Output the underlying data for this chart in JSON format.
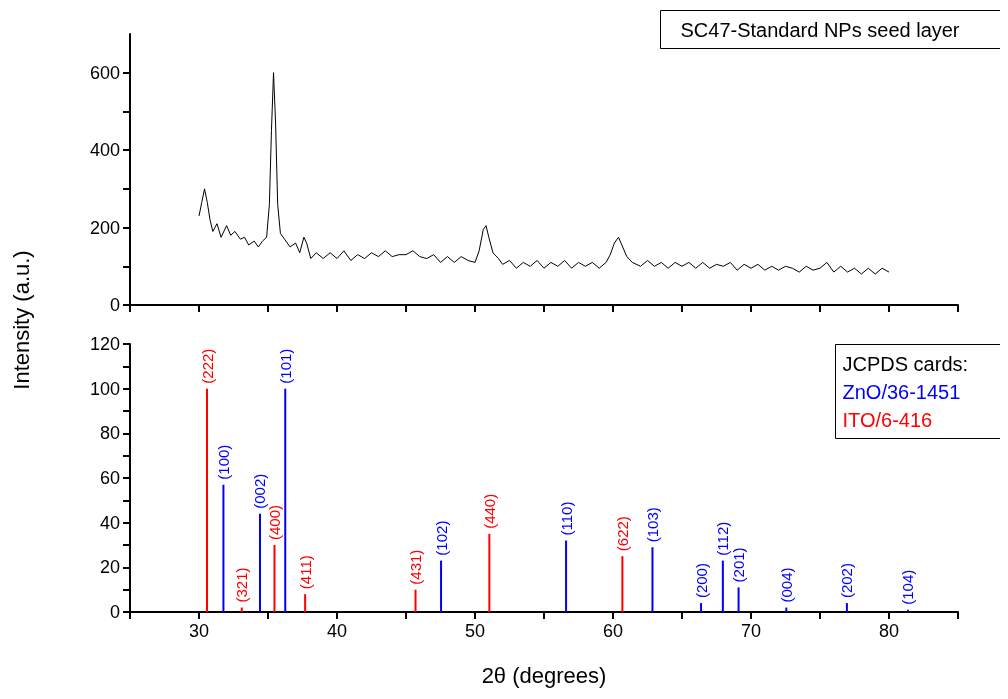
{
  "chart_data": [
    {
      "type": "line",
      "ylabel": "Intensity (a.u.)",
      "legend": "top right",
      "marker": "none",
      "grid": false,
      "tick_labels": "y",
      "xlim": [
        25,
        85
      ],
      "ylim": [
        0,
        700
      ],
      "xticks": [
        {
          "value": 25,
          "label": null
        },
        30,
        {
          "value": 35,
          "label": null
        },
        40,
        {
          "value": 45,
          "label": null
        },
        50,
        {
          "value": 55,
          "label": null
        },
        60,
        {
          "value": 65,
          "label": null
        },
        70,
        {
          "value": 75,
          "label": null
        },
        80,
        {
          "value": 85,
          "label": null
        }
      ],
      "yticks": [
        0,
        {
          "value": 100,
          "label": null
        },
        200,
        {
          "value": 300,
          "label": null
        },
        400,
        {
          "value": 500,
          "label": null
        },
        600
      ],
      "series": [
        {
          "name": "SC47-Standard NPs seed layer",
          "color": "#000000",
          "x": [
            30.0,
            30.2,
            30.4,
            30.6,
            30.8,
            31.0,
            31.3,
            31.6,
            32.0,
            32.3,
            32.6,
            33.0,
            33.3,
            33.6,
            34.0,
            34.3,
            34.6,
            34.9,
            35.1,
            35.25,
            35.4,
            35.55,
            35.7,
            35.9,
            36.2,
            36.6,
            37.0,
            37.3,
            37.6,
            37.8,
            38.1,
            38.5,
            39.0,
            39.5,
            40.0,
            40.5,
            41.0,
            41.5,
            42.0,
            42.5,
            43.0,
            43.5,
            44.0,
            44.5,
            45.0,
            45.5,
            46.0,
            46.5,
            47.0,
            47.5,
            48.0,
            48.5,
            49.0,
            49.5,
            50.0,
            50.3,
            50.6,
            50.8,
            51.0,
            51.3,
            51.7,
            52.0,
            52.5,
            53.0,
            53.5,
            54.0,
            54.5,
            55.0,
            55.5,
            56.0,
            56.5,
            57.0,
            57.5,
            58.0,
            58.5,
            59.0,
            59.5,
            59.8,
            60.1,
            60.4,
            60.7,
            61.0,
            61.4,
            62.0,
            62.5,
            63.0,
            63.5,
            64.0,
            64.5,
            65.0,
            65.5,
            66.0,
            66.5,
            67.0,
            67.5,
            68.0,
            68.5,
            69.0,
            69.5,
            70.0,
            70.5,
            71.0,
            71.5,
            72.0,
            72.5,
            73.0,
            73.5,
            74.0,
            74.5,
            75.0,
            75.5,
            76.0,
            76.5,
            77.0,
            77.5,
            78.0,
            78.5,
            79.0,
            79.5,
            80.0
          ],
          "values": [
            230,
            265,
            300,
            265,
            220,
            190,
            210,
            175,
            205,
            180,
            190,
            170,
            175,
            155,
            165,
            150,
            165,
            175,
            260,
            450,
            600,
            470,
            260,
            185,
            170,
            150,
            160,
            135,
            175,
            160,
            120,
            135,
            120,
            135,
            120,
            140,
            115,
            130,
            120,
            135,
            125,
            140,
            125,
            130,
            130,
            140,
            125,
            120,
            130,
            110,
            125,
            110,
            125,
            115,
            110,
            140,
            195,
            205,
            175,
            135,
            120,
            105,
            115,
            95,
            110,
            100,
            115,
            95,
            110,
            100,
            115,
            95,
            110,
            100,
            110,
            95,
            110,
            130,
            160,
            175,
            150,
            125,
            110,
            100,
            115,
            100,
            110,
            95,
            110,
            100,
            110,
            95,
            110,
            95,
            105,
            100,
            110,
            90,
            105,
            95,
            105,
            90,
            100,
            90,
            100,
            95,
            85,
            100,
            90,
            95,
            110,
            85,
            100,
            85,
            95,
            80,
            95,
            80,
            95,
            85
          ]
        }
      ]
    },
    {
      "type": "bar",
      "xlabel": "2θ (degrees)",
      "legend": "top right",
      "legend_title": "JCPDS cards:",
      "grid": false,
      "xlim": [
        25,
        85
      ],
      "ylim": [
        0,
        120
      ],
      "xticks": [
        {
          "value": 25,
          "label": null
        },
        30,
        {
          "value": 35,
          "label": null
        },
        40,
        {
          "value": 45,
          "label": null
        },
        50,
        {
          "value": 55,
          "label": null
        },
        60,
        {
          "value": 65,
          "label": null
        },
        70,
        {
          "value": 75,
          "label": null
        },
        80,
        {
          "value": 85,
          "label": null
        }
      ],
      "yticks": [
        0,
        {
          "value": 10,
          "label": null
        },
        20,
        {
          "value": 30,
          "label": null
        },
        40,
        {
          "value": 50,
          "label": null
        },
        60,
        {
          "value": 70,
          "label": null
        },
        80,
        {
          "value": 90,
          "label": null
        },
        100,
        {
          "value": 110,
          "label": null
        },
        120
      ],
      "series": [
        {
          "name": "ZnO/36-1451",
          "color": "#0000ff",
          "x": [
            31.77,
            34.42,
            36.25,
            47.54,
            56.6,
            62.86,
            66.38,
            67.96,
            69.1,
            72.56,
            76.95,
            81.37
          ],
          "values": [
            57,
            44,
            100,
            23,
            32,
            29,
            4,
            23,
            11,
            2,
            4,
            1
          ]
        },
        {
          "name": "ITO/6-416",
          "color": "#ff0000",
          "x": [
            30.58,
            33.1,
            35.47,
            37.69,
            45.69,
            51.04,
            60.68
          ],
          "values": [
            100,
            2,
            30,
            8,
            10,
            35,
            25
          ]
        }
      ],
      "annotations": [
        {
          "text": "(222)",
          "x": 30.58,
          "y": 100
        },
        {
          "text": "(100)",
          "x": 31.77,
          "y": 57
        },
        {
          "text": "(321)",
          "x": 33.1,
          "y": 2
        },
        {
          "text": "(002)",
          "x": 34.42,
          "y": 44
        },
        {
          "text": "(400)",
          "x": 35.47,
          "y": 30
        },
        {
          "text": "(101)",
          "x": 36.25,
          "y": 100
        },
        {
          "text": "(411)",
          "x": 37.69,
          "y": 8
        },
        {
          "text": "(431)",
          "x": 45.69,
          "y": 10
        },
        {
          "text": "(102)",
          "x": 47.54,
          "y": 23
        },
        {
          "text": "(440)",
          "x": 51.04,
          "y": 35
        },
        {
          "text": "(110)",
          "x": 56.6,
          "y": 32
        },
        {
          "text": "(622)",
          "x": 60.68,
          "y": 25
        },
        {
          "text": "(103)",
          "x": 62.86,
          "y": 29
        },
        {
          "text": "(200)",
          "x": 66.38,
          "y": 4
        },
        {
          "text": "(112)",
          "x": 67.96,
          "y": 23
        },
        {
          "text": "(201)",
          "x": 69.1,
          "y": 11
        },
        {
          "text": "(004)",
          "x": 72.56,
          "y": 2
        },
        {
          "text": "(202)",
          "x": 76.95,
          "y": 4
        },
        {
          "text": "(104)",
          "x": 81.37,
          "y": 1
        }
      ]
    }
  ]
}
